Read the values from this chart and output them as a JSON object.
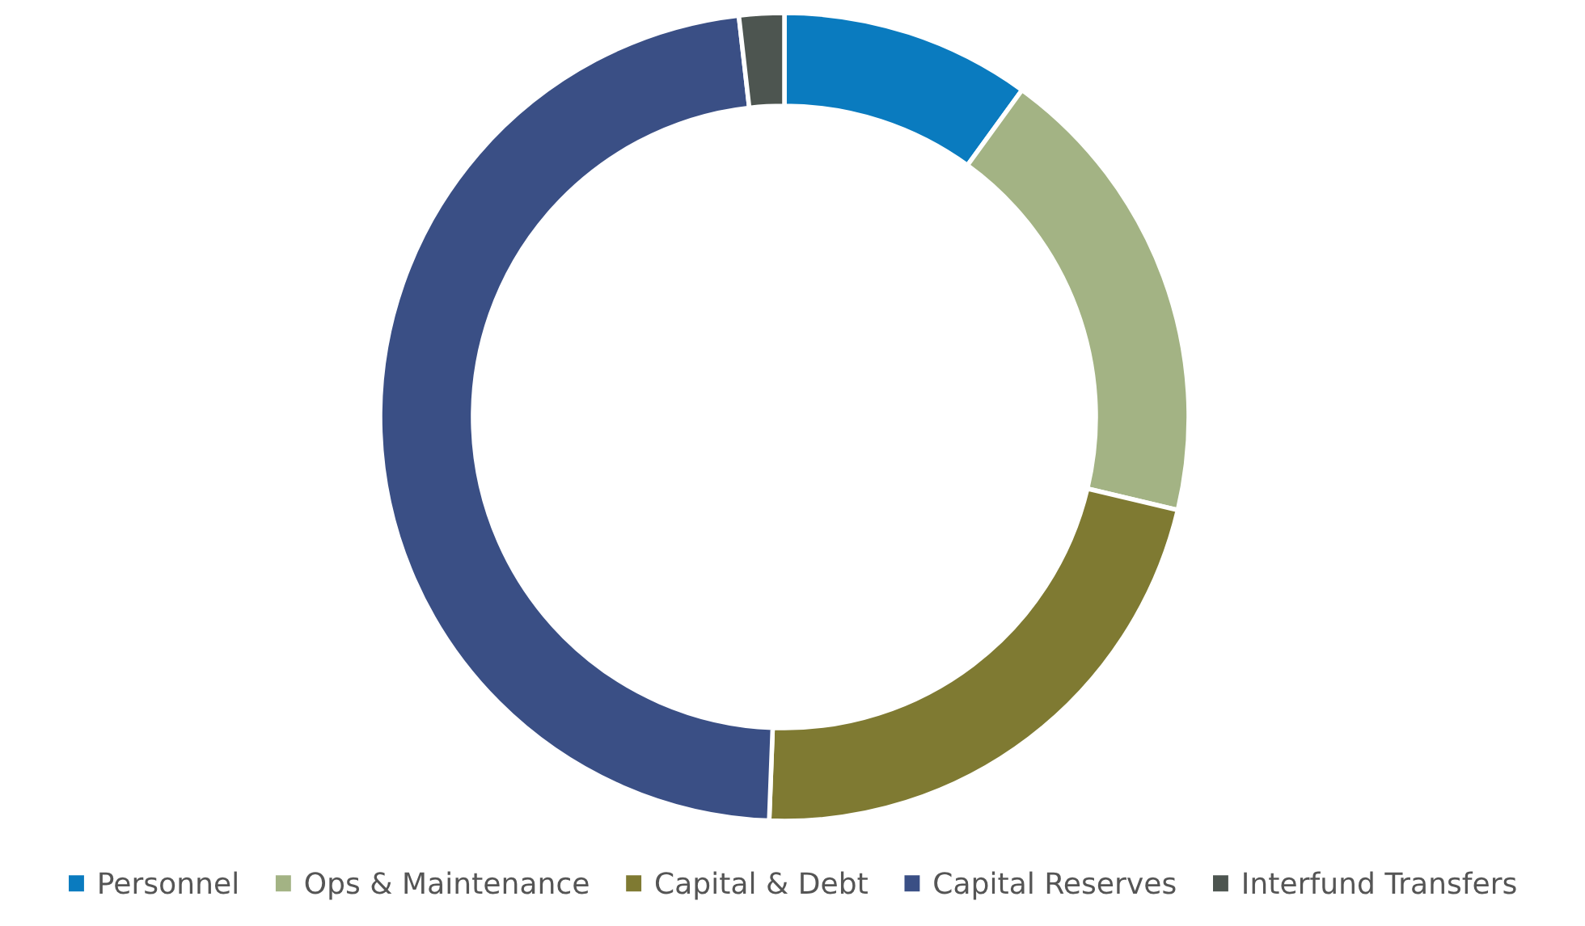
{
  "chart_data": {
    "type": "donut",
    "categories": [
      "Personnel",
      "Ops & Maintenance",
      "Capital & Debt",
      "Capital Reserves",
      "Interfund Transfers"
    ],
    "values": [
      10,
      18.7,
      21.9,
      47.6,
      1.8
    ],
    "colors": [
      "#0a7bbf",
      "#a3b384",
      "#7f7a32",
      "#3a4f85",
      "#4d5550"
    ],
    "legend": "bottom"
  }
}
